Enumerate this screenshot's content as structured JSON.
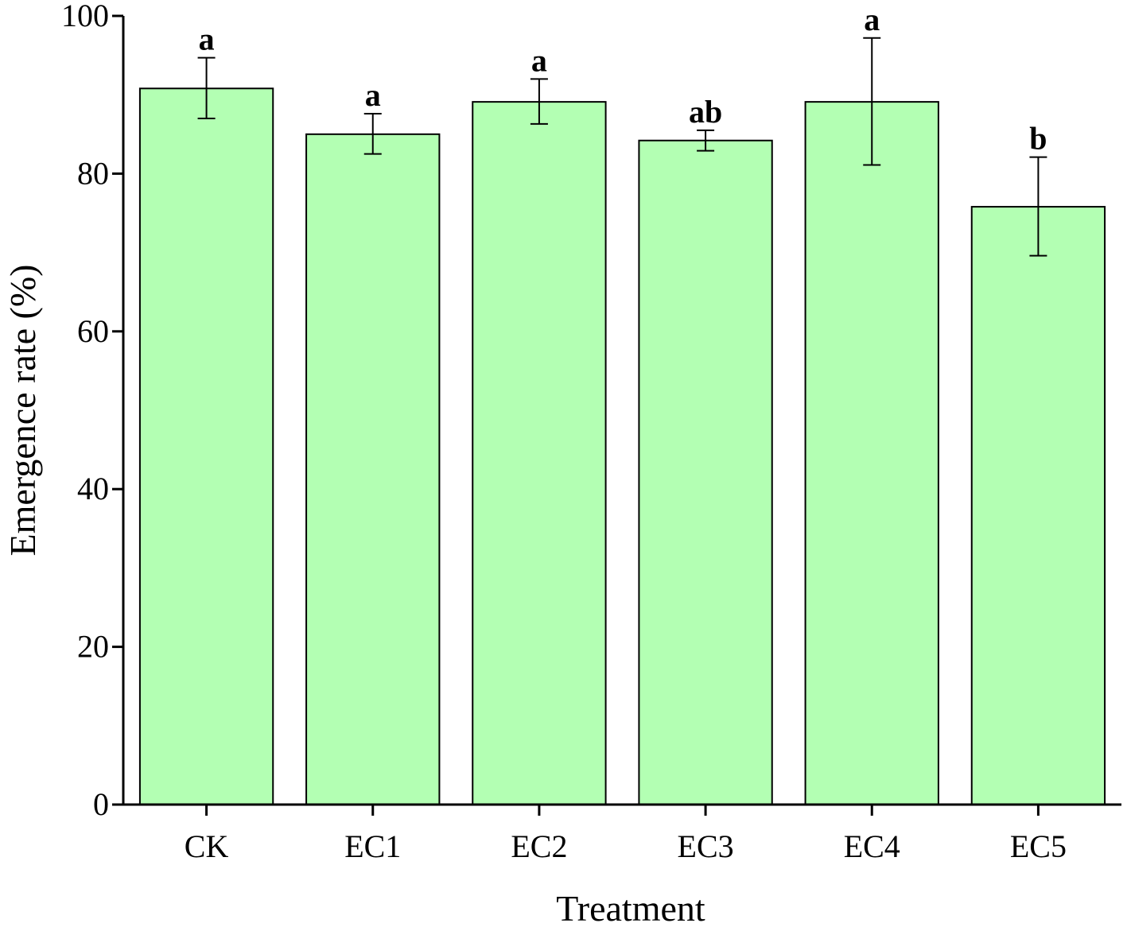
{
  "chart_data": {
    "type": "bar",
    "xlabel": "Treatment",
    "ylabel": "Emergence rate (%)",
    "ylim": [
      0,
      100
    ],
    "yticks": [
      0,
      20,
      40,
      60,
      80,
      100
    ],
    "categories": [
      "CK",
      "EC1",
      "EC2",
      "EC3",
      "EC4",
      "EC5"
    ],
    "values": [
      90.8,
      85.0,
      89.1,
      84.2,
      89.1,
      75.8
    ],
    "error_upper": [
      94.7,
      87.6,
      92.0,
      85.5,
      97.2,
      82.1
    ],
    "error_lower": [
      87.0,
      82.5,
      86.3,
      82.9,
      81.1,
      69.6
    ],
    "significance": [
      "a",
      "a",
      "a",
      "ab",
      "a",
      "b"
    ],
    "bar_color": "#b3ffb3",
    "grid": false,
    "legend": "none"
  }
}
